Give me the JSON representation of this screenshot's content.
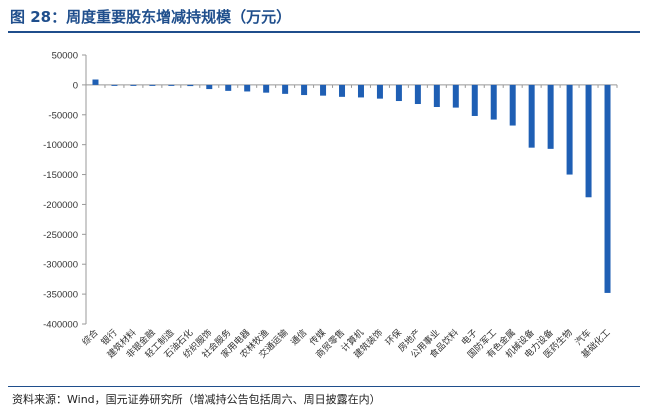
{
  "figure_title": "图 28：周度重要股东增减持规模（万元）",
  "source_note": "资料来源：Wind，国元证券研究所（增减持公告包括周六、周日披露在内）",
  "colors": {
    "bar": "#1f5fb4",
    "title": "#1f4e8c",
    "axis": "#999999"
  },
  "chart_data": {
    "type": "bar",
    "title": "",
    "xlabel": "",
    "ylabel": "",
    "ylim": [
      -400000,
      50000
    ],
    "yticks": [
      50000,
      0,
      -50000,
      -100000,
      -150000,
      -200000,
      -250000,
      -300000,
      -350000,
      -400000
    ],
    "grid": false,
    "categories": [
      "综合",
      "银行",
      "建筑材料",
      "非银金融",
      "轻工制造",
      "石油石化",
      "纺织服饰",
      "社会服务",
      "家用电器",
      "农林牧渔",
      "交通运输",
      "通信",
      "传媒",
      "商贸零售",
      "计算机",
      "建筑装饰",
      "环保",
      "房地产",
      "公用事业",
      "食品饮料",
      "电子",
      "国防军工",
      "有色金属",
      "机械设备",
      "电力设备",
      "医药生物",
      "汽车",
      "基础化工"
    ],
    "values": [
      9000,
      -500,
      -800,
      -1000,
      -1500,
      -2000,
      -7000,
      -10000,
      -11000,
      -13000,
      -15000,
      -17000,
      -18000,
      -20000,
      -21000,
      -23000,
      -27000,
      -32000,
      -37000,
      -38000,
      -52000,
      -58000,
      -68000,
      -105000,
      -107000,
      -150000,
      -188000,
      -348000
    ]
  }
}
